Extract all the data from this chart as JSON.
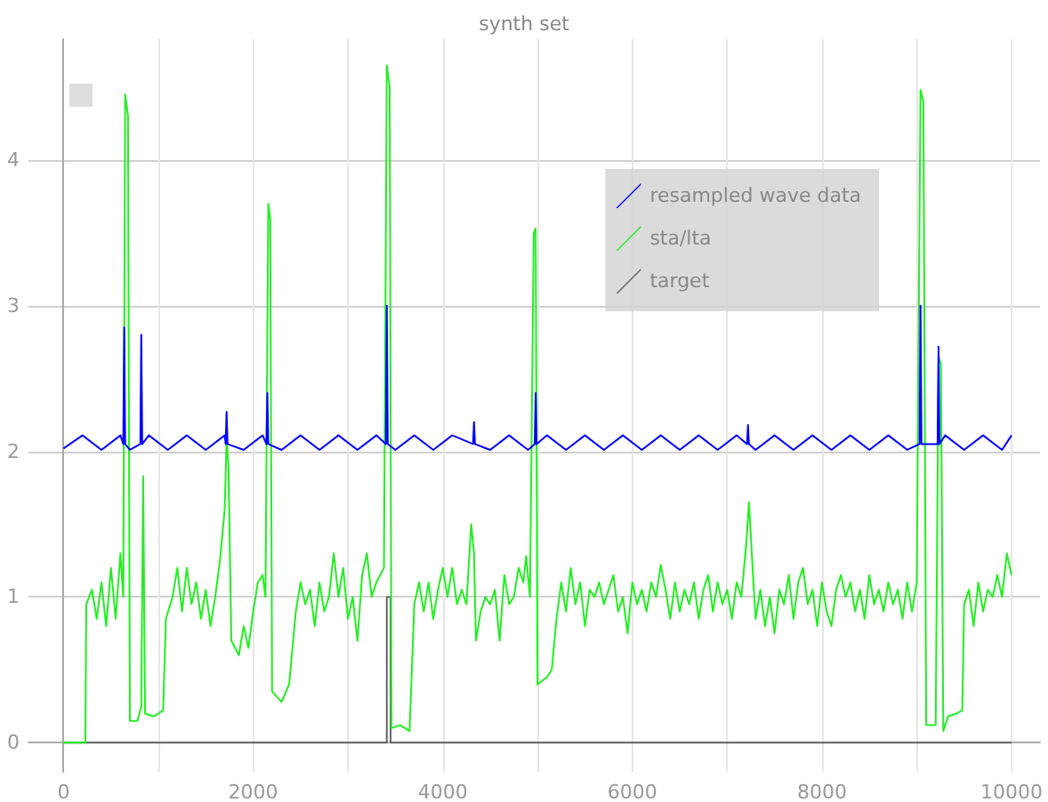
{
  "chart_data": {
    "type": "line",
    "title": "synth set",
    "xlim": [
      -370,
      10300
    ],
    "ylim": [
      -0.2,
      4.83
    ],
    "xticks": [
      0,
      {
        "value": 1000,
        "label": null
      },
      2000,
      {
        "value": 3000,
        "label": null
      },
      4000,
      {
        "value": 5000,
        "label": null
      },
      6000,
      {
        "value": 7000,
        "label": null
      },
      8000,
      {
        "value": 9000,
        "label": null
      },
      10000
    ],
    "yticks": [
      0,
      1,
      2,
      3,
      4
    ],
    "grid": true,
    "legend": "top right",
    "line_style": "solid",
    "marker": "none",
    "series": [
      {
        "name": "resampled wave data",
        "color": "#0000ff",
        "x": [
          0,
          200,
          400,
          600,
          630,
          640,
          650,
          700,
          810,
          820,
          830,
          900,
          1100,
          1300,
          1500,
          1700,
          1710,
          1720,
          1730,
          1900,
          2100,
          2140,
          2150,
          2160,
          2300,
          2500,
          2700,
          2900,
          3100,
          3300,
          3400,
          3410,
          3420,
          3500,
          3700,
          3900,
          4100,
          4320,
          4330,
          4340,
          4500,
          4700,
          4900,
          4970,
          4980,
          4990,
          5100,
          5300,
          5500,
          5700,
          5900,
          6100,
          6300,
          6500,
          6700,
          6900,
          7100,
          7210,
          7220,
          7230,
          7300,
          7500,
          7700,
          7900,
          8100,
          8300,
          8500,
          8700,
          8900,
          9030,
          9040,
          9050,
          9220,
          9230,
          9240,
          9300,
          9500,
          9700,
          9900,
          10000
        ],
        "values": [
          2.02,
          2.11,
          2.01,
          2.11,
          2.05,
          2.85,
          2.05,
          2.01,
          2.05,
          2.8,
          2.05,
          2.11,
          2.01,
          2.11,
          2.01,
          2.11,
          2.05,
          2.27,
          2.05,
          2.01,
          2.11,
          2.05,
          2.4,
          2.05,
          2.01,
          2.11,
          2.01,
          2.11,
          2.01,
          2.11,
          2.05,
          3.0,
          2.05,
          2.01,
          2.11,
          2.01,
          2.11,
          2.05,
          2.2,
          2.05,
          2.01,
          2.11,
          2.01,
          2.05,
          2.4,
          2.05,
          2.11,
          2.01,
          2.11,
          2.01,
          2.11,
          2.01,
          2.11,
          2.01,
          2.11,
          2.01,
          2.11,
          2.05,
          2.18,
          2.05,
          2.01,
          2.11,
          2.01,
          2.11,
          2.01,
          2.11,
          2.01,
          2.11,
          2.01,
          2.05,
          3.0,
          2.05,
          2.05,
          2.72,
          2.05,
          2.11,
          2.01,
          2.11,
          2.01,
          2.11
        ]
      },
      {
        "name": "sta/lta",
        "color": "#22ee22",
        "x": [
          0,
          230,
          240,
          300,
          350,
          400,
          450,
          500,
          550,
          600,
          630,
          650,
          680,
          700,
          780,
          820,
          840,
          860,
          950,
          1050,
          1080,
          1150,
          1200,
          1250,
          1300,
          1350,
          1400,
          1450,
          1500,
          1550,
          1600,
          1650,
          1700,
          1720,
          1740,
          1770,
          1850,
          1900,
          1950,
          2000,
          2050,
          2100,
          2130,
          2160,
          2180,
          2200,
          2300,
          2380,
          2450,
          2500,
          2550,
          2600,
          2650,
          2700,
          2750,
          2800,
          2850,
          2900,
          2950,
          3000,
          3050,
          3100,
          3150,
          3200,
          3250,
          3300,
          3380,
          3410,
          3440,
          3460,
          3550,
          3600,
          3650,
          3700,
          3750,
          3800,
          3850,
          3900,
          3950,
          4000,
          4050,
          4100,
          4150,
          4200,
          4250,
          4300,
          4330,
          4350,
          4400,
          4450,
          4500,
          4550,
          4600,
          4650,
          4700,
          4750,
          4800,
          4850,
          4880,
          4920,
          4960,
          4980,
          5000,
          5100,
          5150,
          5200,
          5250,
          5300,
          5350,
          5400,
          5450,
          5500,
          5550,
          5600,
          5650,
          5700,
          5750,
          5800,
          5850,
          5900,
          5950,
          6000,
          6050,
          6100,
          6150,
          6200,
          6250,
          6300,
          6350,
          6400,
          6450,
          6500,
          6550,
          6600,
          6650,
          6700,
          6750,
          6800,
          6850,
          6900,
          6950,
          7000,
          7050,
          7100,
          7150,
          7200,
          7230,
          7260,
          7300,
          7350,
          7400,
          7450,
          7500,
          7550,
          7600,
          7650,
          7700,
          7750,
          7800,
          7850,
          7900,
          7950,
          8000,
          8050,
          8100,
          8150,
          8200,
          8250,
          8300,
          8350,
          8400,
          8450,
          8500,
          8550,
          8600,
          8650,
          8700,
          8750,
          8800,
          8850,
          8900,
          8950,
          9000,
          9040,
          9070,
          9100,
          9200,
          9230,
          9255,
          9280,
          9330,
          9420,
          9480,
          9500,
          9550,
          9600,
          9650,
          9700,
          9750,
          9800,
          9850,
          9900,
          9950,
          10000
        ],
        "values": [
          0,
          0,
          0.95,
          1.05,
          0.85,
          1.1,
          0.8,
          1.2,
          0.85,
          1.3,
          1.0,
          4.45,
          4.3,
          0.15,
          0.15,
          0.25,
          1.83,
          0.2,
          0.18,
          0.22,
          0.85,
          1.0,
          1.2,
          0.9,
          1.2,
          0.95,
          1.1,
          0.85,
          1.05,
          0.8,
          1.0,
          1.25,
          1.6,
          2.07,
          1.9,
          0.7,
          0.6,
          0.8,
          0.65,
          0.9,
          1.1,
          1.15,
          1.0,
          3.7,
          3.6,
          0.35,
          0.28,
          0.4,
          0.9,
          1.1,
          0.95,
          1.05,
          0.8,
          1.1,
          0.9,
          1.0,
          1.3,
          1.0,
          1.2,
          0.85,
          1.0,
          0.7,
          1.15,
          1.3,
          1.0,
          1.1,
          1.2,
          4.65,
          4.5,
          0.1,
          0.12,
          0.1,
          0.08,
          0.95,
          1.1,
          0.9,
          1.1,
          0.85,
          1.05,
          1.2,
          1.0,
          1.2,
          0.95,
          1.05,
          0.95,
          1.5,
          1.3,
          0.7,
          0.9,
          1.0,
          0.95,
          1.05,
          0.7,
          1.15,
          0.95,
          1.0,
          1.2,
          1.1,
          1.28,
          1.0,
          3.5,
          3.53,
          0.4,
          0.45,
          0.5,
          0.85,
          1.1,
          0.9,
          1.2,
          0.95,
          1.1,
          0.8,
          1.05,
          1.0,
          1.1,
          0.95,
          1.05,
          1.15,
          0.9,
          1.0,
          0.75,
          1.1,
          0.95,
          1.05,
          0.9,
          1.1,
          1.0,
          1.22,
          1.05,
          0.85,
          1.1,
          0.9,
          1.05,
          0.95,
          1.1,
          0.85,
          1.05,
          1.15,
          0.9,
          1.1,
          0.95,
          1.05,
          0.85,
          1.1,
          1.0,
          1.35,
          1.65,
          1.3,
          0.85,
          1.05,
          0.8,
          1.0,
          0.75,
          1.05,
          0.95,
          1.15,
          0.85,
          1.1,
          1.2,
          0.95,
          1.05,
          0.8,
          1.1,
          0.9,
          0.8,
          1.05,
          1.15,
          1.0,
          1.1,
          0.9,
          1.05,
          0.85,
          1.15,
          0.95,
          1.05,
          0.9,
          1.1,
          0.95,
          1.05,
          0.85,
          1.1,
          0.9,
          1.1,
          4.48,
          4.4,
          0.12,
          0.12,
          2.65,
          2.6,
          0.08,
          0.18,
          0.2,
          0.22,
          0.95,
          1.05,
          0.8,
          1.1,
          0.9,
          1.05,
          1.0,
          1.15,
          1.0,
          1.3,
          1.15
        ]
      },
      {
        "name": "target",
        "color": "#666666",
        "x": [
          0,
          3410,
          3410,
          3450,
          3450,
          10000
        ],
        "values": [
          0,
          0,
          1,
          1,
          0,
          0
        ]
      }
    ]
  }
}
